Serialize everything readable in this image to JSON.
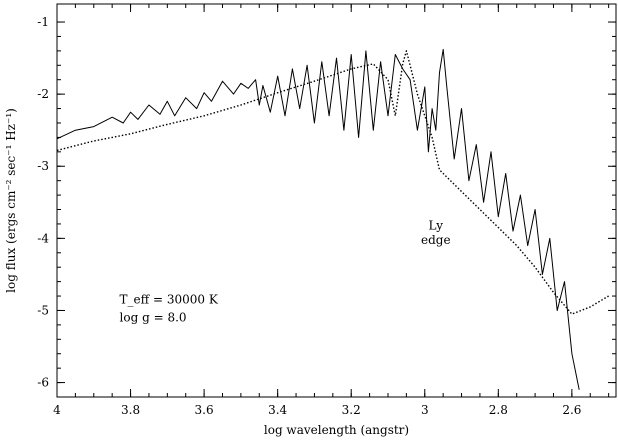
{
  "chart_data": {
    "type": "line",
    "title": "",
    "xlabel": "log wavelength (angstr)",
    "ylabel": "log flux (ergs cm⁻² sec⁻¹ Hz⁻¹)",
    "xlim": [
      4.0,
      2.48
    ],
    "ylim": [
      -6.2,
      -0.75
    ],
    "x_reversed": true,
    "x_ticks": [
      "4",
      "3.8",
      "3.6",
      "3.4",
      "3.2",
      "3",
      "2.8",
      "2.6"
    ],
    "y_ticks": [
      "-1",
      "-2",
      "-3",
      "-4",
      "-5",
      "-6"
    ],
    "grid": false,
    "legend": "none",
    "series": [
      {
        "style": "solid",
        "x": [
          4.0,
          3.95,
          3.9,
          3.85,
          3.82,
          3.8,
          3.78,
          3.75,
          3.72,
          3.7,
          3.68,
          3.65,
          3.62,
          3.6,
          3.58,
          3.55,
          3.52,
          3.5,
          3.48,
          3.46,
          3.45,
          3.44,
          3.42,
          3.4,
          3.38,
          3.36,
          3.34,
          3.32,
          3.3,
          3.28,
          3.26,
          3.24,
          3.22,
          3.2,
          3.18,
          3.16,
          3.14,
          3.12,
          3.1,
          3.08,
          3.06,
          3.04,
          3.02,
          3.0,
          2.99,
          2.98,
          2.97,
          2.96,
          2.95,
          2.94,
          2.93,
          2.92,
          2.9,
          2.88,
          2.86,
          2.84,
          2.82,
          2.8,
          2.78,
          2.76,
          2.74,
          2.72,
          2.7,
          2.68,
          2.66,
          2.64,
          2.62,
          2.6,
          2.58
        ],
        "y": [
          -2.62,
          -2.5,
          -2.45,
          -2.32,
          -2.4,
          -2.25,
          -2.35,
          -2.15,
          -2.28,
          -2.1,
          -2.3,
          -2.05,
          -2.2,
          -1.98,
          -2.1,
          -1.82,
          -2.0,
          -1.85,
          -1.92,
          -1.8,
          -2.15,
          -1.88,
          -2.25,
          -1.75,
          -2.3,
          -1.65,
          -2.2,
          -1.6,
          -2.4,
          -1.55,
          -2.3,
          -1.5,
          -2.5,
          -1.45,
          -2.6,
          -1.4,
          -2.5,
          -1.55,
          -2.3,
          -1.45,
          -1.65,
          -1.8,
          -2.5,
          -1.9,
          -2.8,
          -2.2,
          -2.5,
          -1.7,
          -1.38,
          -1.9,
          -2.4,
          -2.9,
          -2.2,
          -3.2,
          -2.7,
          -3.5,
          -2.8,
          -3.7,
          -3.1,
          -3.9,
          -3.4,
          -4.1,
          -3.6,
          -4.5,
          -4.0,
          -5.0,
          -4.6,
          -5.6,
          -6.1
        ]
      },
      {
        "style": "dotted",
        "x": [
          4.0,
          3.9,
          3.8,
          3.7,
          3.6,
          3.5,
          3.4,
          3.3,
          3.2,
          3.14,
          3.1,
          3.08,
          3.06,
          3.05,
          3.04,
          3.02,
          3.0,
          2.98,
          2.96,
          2.95,
          2.9,
          2.85,
          2.8,
          2.75,
          2.7,
          2.65,
          2.6,
          2.55,
          2.5
        ],
        "y": [
          -2.78,
          -2.65,
          -2.55,
          -2.42,
          -2.3,
          -2.15,
          -1.98,
          -1.82,
          -1.65,
          -1.58,
          -1.8,
          -2.3,
          -1.58,
          -1.4,
          -1.6,
          -2.0,
          -2.3,
          -2.6,
          -3.05,
          -3.1,
          -3.35,
          -3.6,
          -3.85,
          -4.1,
          -4.4,
          -4.75,
          -5.05,
          -4.95,
          -4.8
        ]
      }
    ],
    "annotations": [
      {
        "text": "Ly",
        "x": 2.97,
        "y": -3.88
      },
      {
        "text": "edge",
        "x": 2.97,
        "y": -4.08
      },
      {
        "text": "T_eff = 30000 K",
        "x": 3.83,
        "y": -4.9
      },
      {
        "text": "log g = 8.0",
        "x": 3.83,
        "y": -5.15
      }
    ]
  }
}
